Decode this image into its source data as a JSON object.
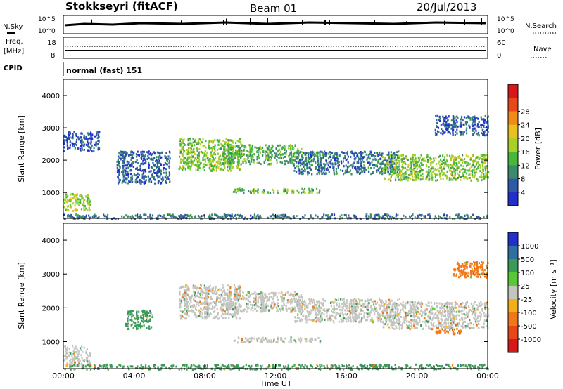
{
  "header": {
    "station": "Stokkseyri (fitACF)",
    "beam": "Beam 01",
    "date": "20/Jul/2013"
  },
  "noise_panel": {
    "left_label": "N.Sky",
    "left_ticks": [
      "10^5",
      "10^0"
    ],
    "right_ticks": [
      "10^5",
      "10^0"
    ],
    "right_label": "N.Search"
  },
  "freq_panel": {
    "left_label": "Freq.",
    "left_units": "[MHz]",
    "left_ticks": [
      "18",
      "8"
    ],
    "right_ticks": [
      "60",
      "0"
    ],
    "right_label": "Nave"
  },
  "cpid_panel": {
    "label": "CPID",
    "mode": "normal (fast) 151"
  },
  "x_axis": {
    "tick_labels": [
      "00:00",
      "04:00",
      "08:00",
      "12:00",
      "16:00",
      "20:00",
      "00:00"
    ],
    "label": "Time UT"
  },
  "y_axis": {
    "label": "Slant Range [km]",
    "tick_labels": [
      "1000",
      "2000",
      "3000",
      "4000"
    ]
  },
  "power_colorbar": {
    "label": "Power [dB]",
    "tick_labels": [
      "4",
      "8",
      "12",
      "16",
      "20",
      "24",
      "28"
    ]
  },
  "velocity_colorbar": {
    "label": "Velocity [m s⁻¹]",
    "tick_labels": [
      "1000",
      "500",
      "100",
      "25",
      "-25",
      "-100",
      "-500",
      "-1000"
    ]
  },
  "colors": {
    "power_scale": [
      "#2030c8",
      "#2f5aa8",
      "#3c8a6c",
      "#48b83a",
      "#a8d028",
      "#e8c020",
      "#f08a18",
      "#e84818",
      "#d81818"
    ],
    "velocity_scale": [
      "#2030c8",
      "#2f6ea0",
      "#3c9a58",
      "#58c838",
      "#c4c4c0",
      "#f0b018",
      "#f07818",
      "#e84818",
      "#d81818"
    ]
  },
  "chart_data": [
    {
      "type": "heatmap",
      "panel": "power",
      "x_unit": "hours UT",
      "xlim": [
        0,
        24
      ],
      "ylim": [
        200,
        4500
      ],
      "ylabel": "Slant Range [km]",
      "xlabel": "",
      "colorbar_label": "Power [dB]",
      "features": [
        {
          "t": [
            0.0,
            1.5
          ],
          "range_km": [
            450,
            1000
          ],
          "power_db": 18
        },
        {
          "t": [
            0.0,
            2.0
          ],
          "range_km": [
            2300,
            2900
          ],
          "power_db": 5
        },
        {
          "t": [
            3.0,
            6.0
          ],
          "range_km": [
            1300,
            2300
          ],
          "power_db": 6
        },
        {
          "t": [
            6.5,
            10.0
          ],
          "range_km": [
            1700,
            2700
          ],
          "power_db": 16
        },
        {
          "t": [
            9.0,
            13.5
          ],
          "range_km": [
            1900,
            2500
          ],
          "power_db": 13
        },
        {
          "t": [
            9.5,
            14.5
          ],
          "range_km": [
            1000,
            1150
          ],
          "power_db": 14
        },
        {
          "t": [
            13.0,
            19.0
          ],
          "range_km": [
            1600,
            2300
          ],
          "power_db": 8
        },
        {
          "t": [
            18.0,
            24.0
          ],
          "range_km": [
            1400,
            2200
          ],
          "power_db": 16
        },
        {
          "t": [
            21.0,
            24.0
          ],
          "range_km": [
            2800,
            3400
          ],
          "power_db": 6
        },
        {
          "t": [
            0.0,
            24.0
          ],
          "range_km": [
            200,
            350
          ],
          "power_db": 8
        }
      ]
    },
    {
      "type": "heatmap",
      "panel": "velocity",
      "x_unit": "hours UT",
      "xlim": [
        0,
        24
      ],
      "ylim": [
        200,
        4500
      ],
      "ylabel": "Slant Range [km]",
      "xlabel": "Time UT",
      "colorbar_label": "Velocity [m s⁻¹]",
      "features": [
        {
          "t": [
            0.0,
            1.5
          ],
          "range_km": [
            300,
            900
          ],
          "velocity_ms": 0
        },
        {
          "t": [
            3.5,
            5.0
          ],
          "range_km": [
            1400,
            1950
          ],
          "velocity_ms": 300
        },
        {
          "t": [
            6.5,
            10.0
          ],
          "range_km": [
            1700,
            2700
          ],
          "velocity_ms": 0
        },
        {
          "t": [
            9.0,
            13.5
          ],
          "range_km": [
            1900,
            2500
          ],
          "velocity_ms": 0
        },
        {
          "t": [
            9.5,
            14.5
          ],
          "range_km": [
            1000,
            1150
          ],
          "velocity_ms": 0
        },
        {
          "t": [
            13.0,
            19.0
          ],
          "range_km": [
            1600,
            2300
          ],
          "velocity_ms": 0
        },
        {
          "t": [
            18.0,
            24.0
          ],
          "range_km": [
            1400,
            2200
          ],
          "velocity_ms": 0
        },
        {
          "t": [
            21.0,
            22.5
          ],
          "range_km": [
            1250,
            1450
          ],
          "velocity_ms": -300
        },
        {
          "t": [
            22.0,
            24.0
          ],
          "range_km": [
            2900,
            3400
          ],
          "velocity_ms": -150
        },
        {
          "t": [
            0.0,
            24.0
          ],
          "range_km": [
            200,
            350
          ],
          "velocity_ms": 200
        }
      ]
    }
  ]
}
